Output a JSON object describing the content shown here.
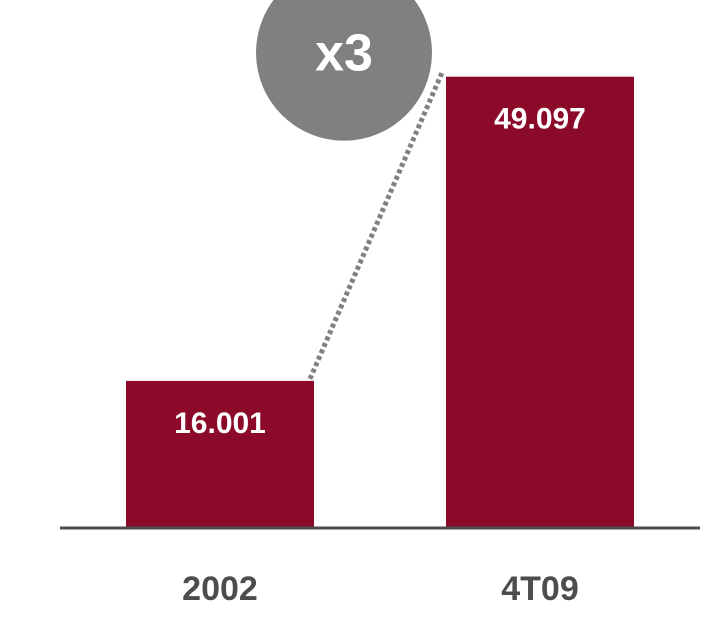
{
  "chart_data": {
    "type": "bar",
    "categories": [
      "2002",
      "4T09"
    ],
    "values": [
      16001,
      49097
    ],
    "value_labels": [
      "16.001",
      "49.097"
    ],
    "ylim": [
      0,
      52000
    ],
    "grid": false,
    "legend": "none",
    "annotation": {
      "label": "x3",
      "connector": "dotted line from top of 2002 bar to top of 4T09 bar"
    },
    "colors": {
      "bar": "#8b0a2a",
      "bar_label": "#ffffff",
      "axis": "#4d4d4d",
      "category_label": "#4d4d4d",
      "badge": "#808080",
      "badge_text": "#ffffff",
      "connector": "#808080"
    }
  }
}
